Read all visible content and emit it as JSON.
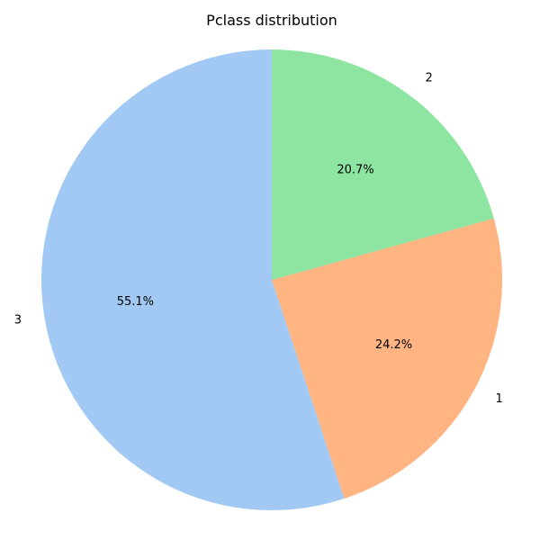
{
  "chart_data": {
    "type": "pie",
    "title": "Pclass distribution",
    "slices": [
      {
        "label": "3",
        "value": 55.1,
        "pct_label": "55.1%",
        "color": "#a1c9f4"
      },
      {
        "label": "1",
        "value": 24.2,
        "pct_label": "24.2%",
        "color": "#ffb482"
      },
      {
        "label": "2",
        "value": 20.7,
        "pct_label": "20.7%",
        "color": "#8de5a1"
      }
    ],
    "start_angle": "90 deg",
    "direction": "counterclockwise"
  }
}
